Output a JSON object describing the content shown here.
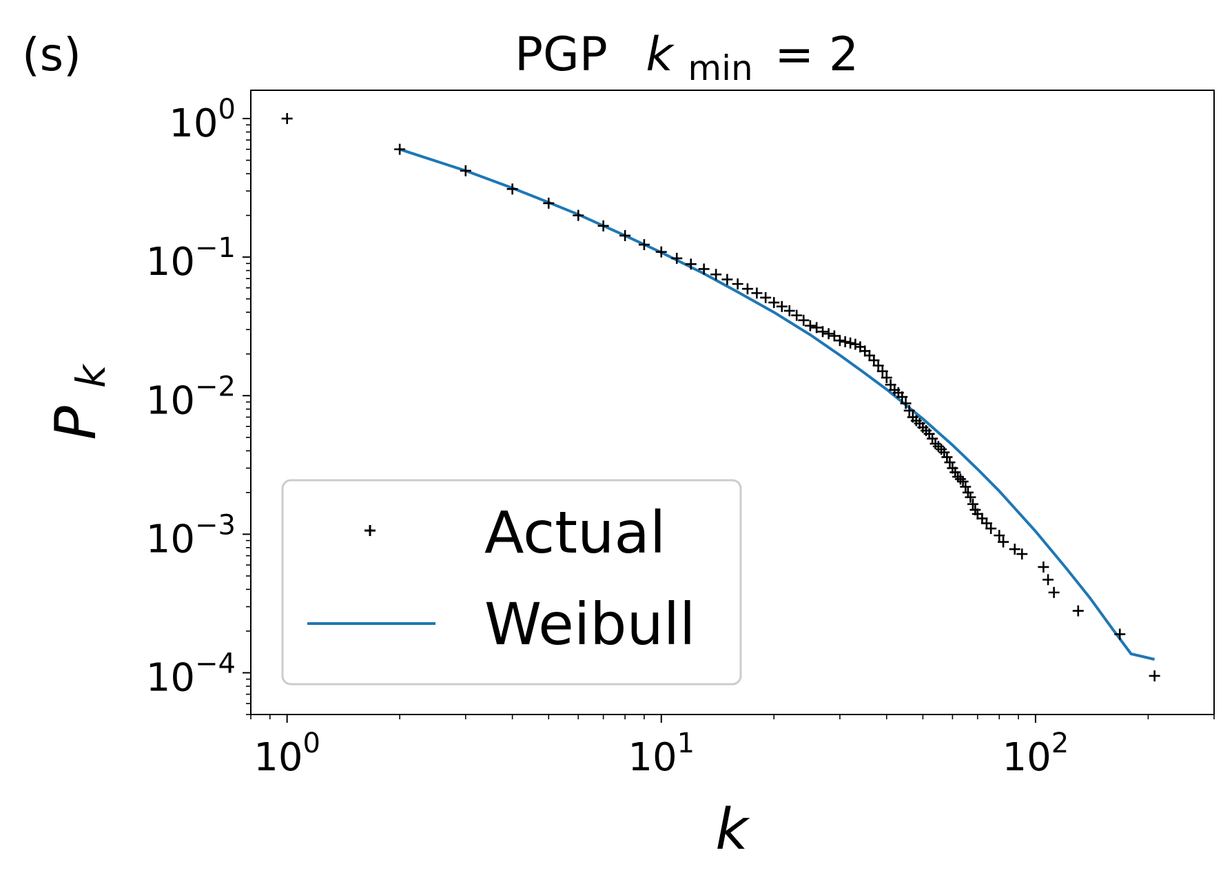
{
  "panel_label": "(s)",
  "chart_data": {
    "type": "scatter",
    "title": {
      "prefix": "PGP",
      "k_symbol": "k",
      "k_subscript": "min",
      "suffix": "= 2"
    },
    "xlabel": "k",
    "ylabel": {
      "base": "P",
      "subscript": "k"
    },
    "x_scale": "log",
    "y_scale": "log",
    "xlim": [
      0.8,
      300
    ],
    "ylim": [
      5e-05,
      1.6
    ],
    "x_ticks": [
      {
        "value": 1,
        "base": "10",
        "exp": "0"
      },
      {
        "value": 10,
        "base": "10",
        "exp": "1"
      },
      {
        "value": 100,
        "base": "10",
        "exp": "2"
      }
    ],
    "y_ticks": [
      {
        "value": 1,
        "base": "10",
        "exp": "0"
      },
      {
        "value": 0.1,
        "base": "10",
        "exp": "−1"
      },
      {
        "value": 0.01,
        "base": "10",
        "exp": "−2"
      },
      {
        "value": 0.001,
        "base": "10",
        "exp": "−3"
      },
      {
        "value": 0.0001,
        "base": "10",
        "exp": "−4"
      }
    ],
    "grid": false,
    "legend_position": "lower-left",
    "series": [
      {
        "name": "Actual",
        "kind": "marker",
        "marker": "+",
        "color": "#000000",
        "x": [
          1,
          2,
          3,
          4,
          5,
          6,
          7,
          8,
          9,
          10,
          11,
          12,
          13,
          14,
          15,
          16,
          17,
          18,
          19,
          20,
          21,
          22,
          23,
          24,
          25,
          26,
          27,
          28,
          29,
          30,
          31,
          32,
          33,
          34,
          35,
          36,
          37,
          38,
          39,
          40,
          41,
          42,
          43,
          44,
          45,
          46,
          47,
          48,
          49,
          50,
          51,
          52,
          53,
          54,
          55,
          56,
          57,
          58,
          59,
          60,
          61,
          62,
          63,
          64,
          65,
          66,
          67,
          68,
          69,
          70,
          72,
          74,
          76,
          80,
          82,
          88,
          92,
          105,
          108,
          112,
          130,
          168,
          208
        ],
        "y": [
          1.0,
          0.6,
          0.42,
          0.31,
          0.245,
          0.2,
          0.168,
          0.143,
          0.123,
          0.109,
          0.098,
          0.089,
          0.082,
          0.075,
          0.069,
          0.064,
          0.059,
          0.055,
          0.051,
          0.047,
          0.044,
          0.041,
          0.038,
          0.035,
          0.032,
          0.031,
          0.029,
          0.028,
          0.027,
          0.025,
          0.0245,
          0.024,
          0.0235,
          0.0225,
          0.021,
          0.0195,
          0.018,
          0.0165,
          0.015,
          0.0135,
          0.012,
          0.011,
          0.0105,
          0.0098,
          0.0088,
          0.0078,
          0.007,
          0.0066,
          0.0063,
          0.0059,
          0.0056,
          0.0053,
          0.0049,
          0.0045,
          0.0043,
          0.0041,
          0.0039,
          0.0036,
          0.0033,
          0.003,
          0.0028,
          0.0026,
          0.0025,
          0.0024,
          0.0022,
          0.002,
          0.00185,
          0.00165,
          0.0015,
          0.0014,
          0.0013,
          0.0012,
          0.0011,
          0.00098,
          0.00088,
          0.00078,
          0.00072,
          0.00058,
          0.00047,
          0.00038,
          0.00028,
          0.00019,
          9.5e-05
        ]
      },
      {
        "name": "Weibull",
        "kind": "line",
        "color": "#1f77b4",
        "x": [
          2,
          3,
          4,
          5,
          6,
          8,
          10,
          13,
          16,
          20,
          25,
          30,
          35,
          40,
          50,
          60,
          70,
          80,
          100,
          120,
          140,
          160,
          180,
          208
        ],
        "y": [
          0.6,
          0.42,
          0.315,
          0.248,
          0.203,
          0.143,
          0.108,
          0.076,
          0.056,
          0.04,
          0.0275,
          0.0196,
          0.0145,
          0.0111,
          0.0068,
          0.0044,
          0.00295,
          0.00205,
          0.00105,
          0.00058,
          0.000345,
          0.00021,
          0.000137,
          0.000125
        ]
      }
    ]
  }
}
